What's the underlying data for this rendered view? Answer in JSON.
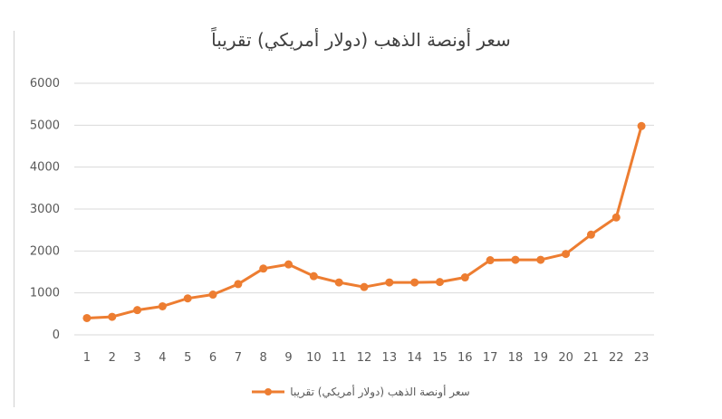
{
  "chart_data": {
    "type": "line",
    "title": "سعر أونصة الذهب (دولار أمريكي) تقريباً",
    "xlabel": "",
    "ylabel": "",
    "categories": [
      "1",
      "2",
      "3",
      "4",
      "5",
      "6",
      "7",
      "8",
      "9",
      "10",
      "11",
      "12",
      "13",
      "14",
      "15",
      "16",
      "17",
      "18",
      "19",
      "20",
      "21",
      "22",
      "23"
    ],
    "yticks": [
      "0",
      "1000",
      "2000",
      "3000",
      "4000",
      "5000",
      "6000"
    ],
    "ylim": [
      0,
      6000
    ],
    "grid": true,
    "legend_position": "bottom",
    "series": [
      {
        "name": "سعر أونصة الذهب (دولار أمريكي) تقريبا",
        "color": "#ed7d31",
        "values": [
          400,
          430,
          590,
          680,
          870,
          960,
          1210,
          1580,
          1680,
          1400,
          1250,
          1140,
          1250,
          1250,
          1260,
          1370,
          1780,
          1790,
          1790,
          1930,
          2390,
          2800,
          4980
        ]
      }
    ]
  }
}
